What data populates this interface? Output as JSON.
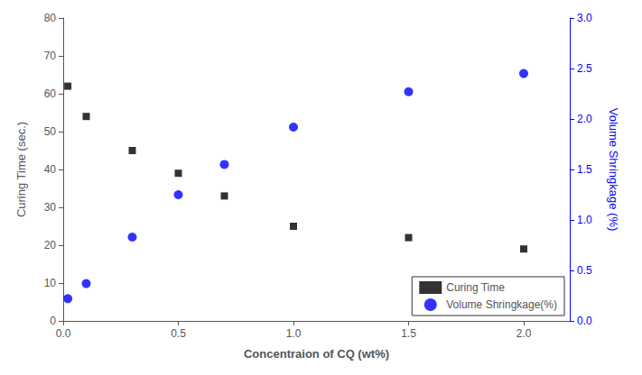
{
  "chart_data": {
    "type": "scatter",
    "xlabel": "Concentraion of CQ (wt%)",
    "ylabel": "Curing Time (sec.)",
    "y2label": "Volume Shringkage (%)",
    "x": [
      0.02,
      0.1,
      0.3,
      0.5,
      0.7,
      1.0,
      1.5,
      2.0
    ],
    "series": [
      {
        "name": "Curing Time",
        "color": "black",
        "marker": "square",
        "values": [
          62,
          54,
          45,
          39,
          33,
          25,
          22,
          19
        ]
      },
      {
        "name": "Volume Shringkage(%)",
        "color": "blue",
        "marker": "circle",
        "axis": "y2",
        "values": [
          0.22,
          0.37,
          0.83,
          1.25,
          1.55,
          1.92,
          2.27,
          2.45
        ]
      }
    ],
    "xlim": [
      0,
      2.2
    ],
    "xticks": [
      {
        "value": 0.0,
        "label": "0.0"
      },
      {
        "value": 0.5,
        "label": "0.5"
      },
      {
        "value": 1.0,
        "label": "1.0"
      },
      {
        "value": 1.5,
        "label": "1.5"
      },
      {
        "value": 2.0,
        "label": "2.0"
      }
    ],
    "ylim": [
      0,
      80
    ],
    "yticks": [
      0,
      10,
      20,
      30,
      40,
      50,
      60,
      70,
      80
    ],
    "y2lim": [
      0.0,
      3.0
    ],
    "y2ticks": [
      {
        "value": 0.0,
        "label": "0.0"
      },
      {
        "value": 0.5,
        "label": "0.5"
      },
      {
        "value": 1.0,
        "label": "1.0"
      },
      {
        "value": 1.5,
        "label": "1.5"
      },
      {
        "value": 2.0,
        "label": "2.0"
      },
      {
        "value": 2.5,
        "label": "2.5"
      },
      {
        "value": 3.0,
        "label": "3.0"
      }
    ],
    "grid": false,
    "legend": "lower right"
  }
}
